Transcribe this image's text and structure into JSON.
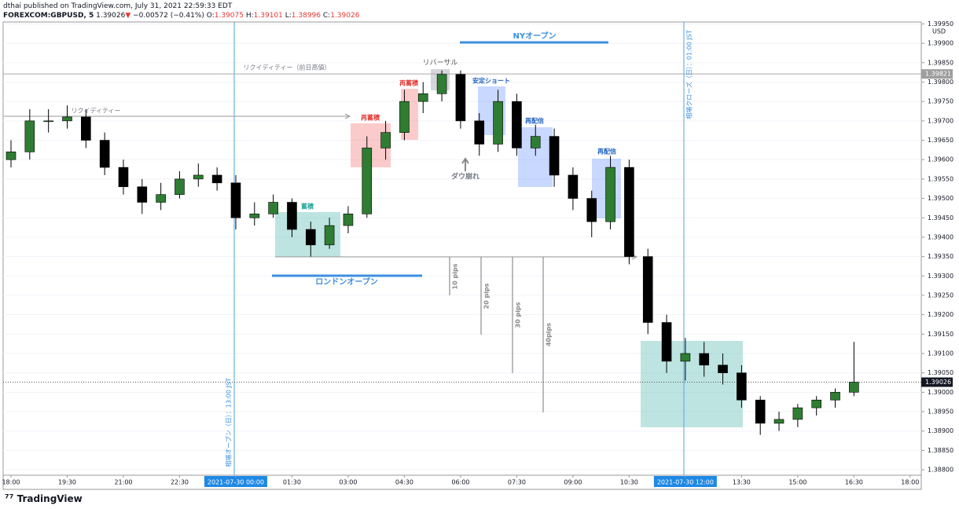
{
  "header": {
    "publisher": "dthai published on TradingView.com, July 31, 2021 22:59:33 EDT",
    "symbol": "FOREXCOM:GBPUSD, 5",
    "last": "1.39026",
    "arrow": "▼",
    "change": "−0.00572 (−0.41%)",
    "o_label": "O:",
    "o": "1.39075",
    "h_label": "H:",
    "h": "1.39101",
    "l_label": "L:",
    "l": "1.38996",
    "c_label": "C:",
    "c": "1.39026"
  },
  "footer": {
    "brand": "TradingView"
  },
  "chart_data": {
    "type": "candlestick",
    "currency": "USD",
    "x": [
      "18:00",
      "18:30",
      "19:00",
      "19:30",
      "20:00",
      "20:30",
      "21:00",
      "21:30",
      "22:00",
      "22:30",
      "23:00",
      "23:30",
      "00:00",
      "00:30",
      "01:00",
      "01:30",
      "02:00",
      "02:30",
      "03:00",
      "03:30",
      "04:00",
      "04:30",
      "05:00",
      "05:30",
      "06:00",
      "06:30",
      "07:00",
      "07:30",
      "08:00",
      "08:30",
      "09:00",
      "09:30",
      "10:00",
      "10:30",
      "11:00",
      "11:30",
      "12:00",
      "12:30",
      "13:00",
      "13:30",
      "14:00",
      "14:30",
      "15:00",
      "15:30",
      "16:00",
      "16:30"
    ],
    "open": [
      1.396,
      1.3962,
      1.397,
      1.397,
      1.3971,
      1.3965,
      1.3958,
      1.3953,
      1.3949,
      1.3951,
      1.3955,
      1.3956,
      1.3954,
      1.3945,
      1.3946,
      1.3949,
      1.3942,
      1.3938,
      1.3943,
      1.3946,
      1.3963,
      1.3967,
      1.3975,
      1.3977,
      1.3982,
      1.397,
      1.3964,
      1.3975,
      1.3963,
      1.3966,
      1.3956,
      1.395,
      1.3944,
      1.3958,
      1.3935,
      1.3918,
      1.3908,
      1.391,
      1.3907,
      1.3905,
      1.3898,
      1.3892,
      1.3893,
      1.3896,
      1.3898,
      1.39
    ],
    "high": [
      1.3965,
      1.3973,
      1.3973,
      1.3974,
      1.3973,
      1.3967,
      1.396,
      1.3955,
      1.3954,
      1.3957,
      1.3959,
      1.3958,
      1.3956,
      1.3949,
      1.3951,
      1.395,
      1.3944,
      1.3945,
      1.3948,
      1.3966,
      1.397,
      1.3978,
      1.398,
      1.3983,
      1.3983,
      1.3972,
      1.3978,
      1.3977,
      1.3969,
      1.3968,
      1.3958,
      1.3952,
      1.3961,
      1.396,
      1.3937,
      1.392,
      1.3914,
      1.3913,
      1.391,
      1.3907,
      1.3899,
      1.3895,
      1.3897,
      1.3899,
      1.3901,
      1.3913
    ],
    "low": [
      1.3958,
      1.396,
      1.3967,
      1.3968,
      1.3963,
      1.3956,
      1.3951,
      1.3946,
      1.3947,
      1.395,
      1.3953,
      1.3952,
      1.3942,
      1.3943,
      1.3945,
      1.394,
      1.3935,
      1.3937,
      1.3941,
      1.3945,
      1.396,
      1.3965,
      1.3972,
      1.3975,
      1.3968,
      1.3961,
      1.3962,
      1.3961,
      1.3961,
      1.3953,
      1.3947,
      1.394,
      1.3942,
      1.3933,
      1.3915,
      1.3905,
      1.3903,
      1.3904,
      1.3902,
      1.3896,
      1.3889,
      1.389,
      1.3891,
      1.3894,
      1.3896,
      1.3899
    ],
    "close": [
      1.3962,
      1.397,
      1.397,
      1.3971,
      1.3965,
      1.3958,
      1.3953,
      1.3949,
      1.3951,
      1.3955,
      1.3956,
      1.3954,
      1.3945,
      1.3946,
      1.3949,
      1.3942,
      1.3938,
      1.3943,
      1.3946,
      1.3963,
      1.3967,
      1.3975,
      1.3977,
      1.3982,
      1.397,
      1.3964,
      1.3975,
      1.3963,
      1.3966,
      1.3956,
      1.395,
      1.3944,
      1.3958,
      1.3935,
      1.3918,
      1.3908,
      1.391,
      1.3907,
      1.3905,
      1.3898,
      1.3892,
      1.3893,
      1.3896,
      1.3898,
      1.39,
      1.39026
    ],
    "up_color": "#2e7d32",
    "down_color": "#000000",
    "ylim": [
      1.38786,
      1.39955
    ],
    "yticks": [
      {
        "value": 1.3995,
        "label": "1.39950"
      },
      {
        "value": 1.399,
        "label": "1.39900"
      },
      {
        "value": 1.3985,
        "label": "1.39850"
      },
      {
        "value": 1.398,
        "label": "1.39800"
      },
      {
        "value": 1.3975,
        "label": "1.39750"
      },
      {
        "value": 1.397,
        "label": "1.39700"
      },
      {
        "value": 1.3965,
        "label": "1.39650"
      },
      {
        "value": 1.396,
        "label": "1.39600"
      },
      {
        "value": 1.3955,
        "label": "1.39550"
      },
      {
        "value": 1.395,
        "label": "1.39500"
      },
      {
        "value": 1.3945,
        "label": "1.39450"
      },
      {
        "value": 1.394,
        "label": "1.39400"
      },
      {
        "value": 1.3935,
        "label": "1.39350"
      },
      {
        "value": 1.393,
        "label": "1.39300"
      },
      {
        "value": 1.3925,
        "label": "1.39250"
      },
      {
        "value": 1.392,
        "label": "1.39200"
      },
      {
        "value": 1.3915,
        "label": "1.39150"
      },
      {
        "value": 1.391,
        "label": "1.39100"
      },
      {
        "value": 1.3905,
        "label": "1.39050"
      },
      {
        "value": 1.39,
        "label": "1.39000"
      },
      {
        "value": 1.3895,
        "label": "1.38950"
      },
      {
        "value": 1.389,
        "label": "1.38900"
      },
      {
        "value": 1.3885,
        "label": "1.38850"
      },
      {
        "value": 1.388,
        "label": "1.38800"
      }
    ],
    "xticks": [
      "18:00",
      "19:30",
      "21:00",
      "22:30",
      "2021-07-30   00:00",
      "01:30",
      "03:00",
      "04:30",
      "06:00",
      "07:30",
      "09:00",
      "10:30",
      "2021-07-30   12:00",
      "13:30",
      "15:00",
      "16:30",
      "18:00"
    ],
    "price_lines": [
      {
        "value": 1.39821,
        "label": "1.39821"
      },
      {
        "value": 1.39026,
        "label": "1.39026"
      }
    ],
    "annotations": [
      "リクイディティー（前日高値）",
      "リクイディティー",
      "NYオープン",
      "リバーサル",
      "再蓄積",
      "再蓄積",
      "安定ショート",
      "再配信",
      "再配信",
      "蓄積",
      "ダウ崩れ",
      "ロンドンオープン",
      "10 pips",
      "20 pips",
      "30 pips",
      "40pips",
      "相場オープン（日）：13:00 JST",
      "相場クローズ（日）：01:00 JST"
    ]
  }
}
